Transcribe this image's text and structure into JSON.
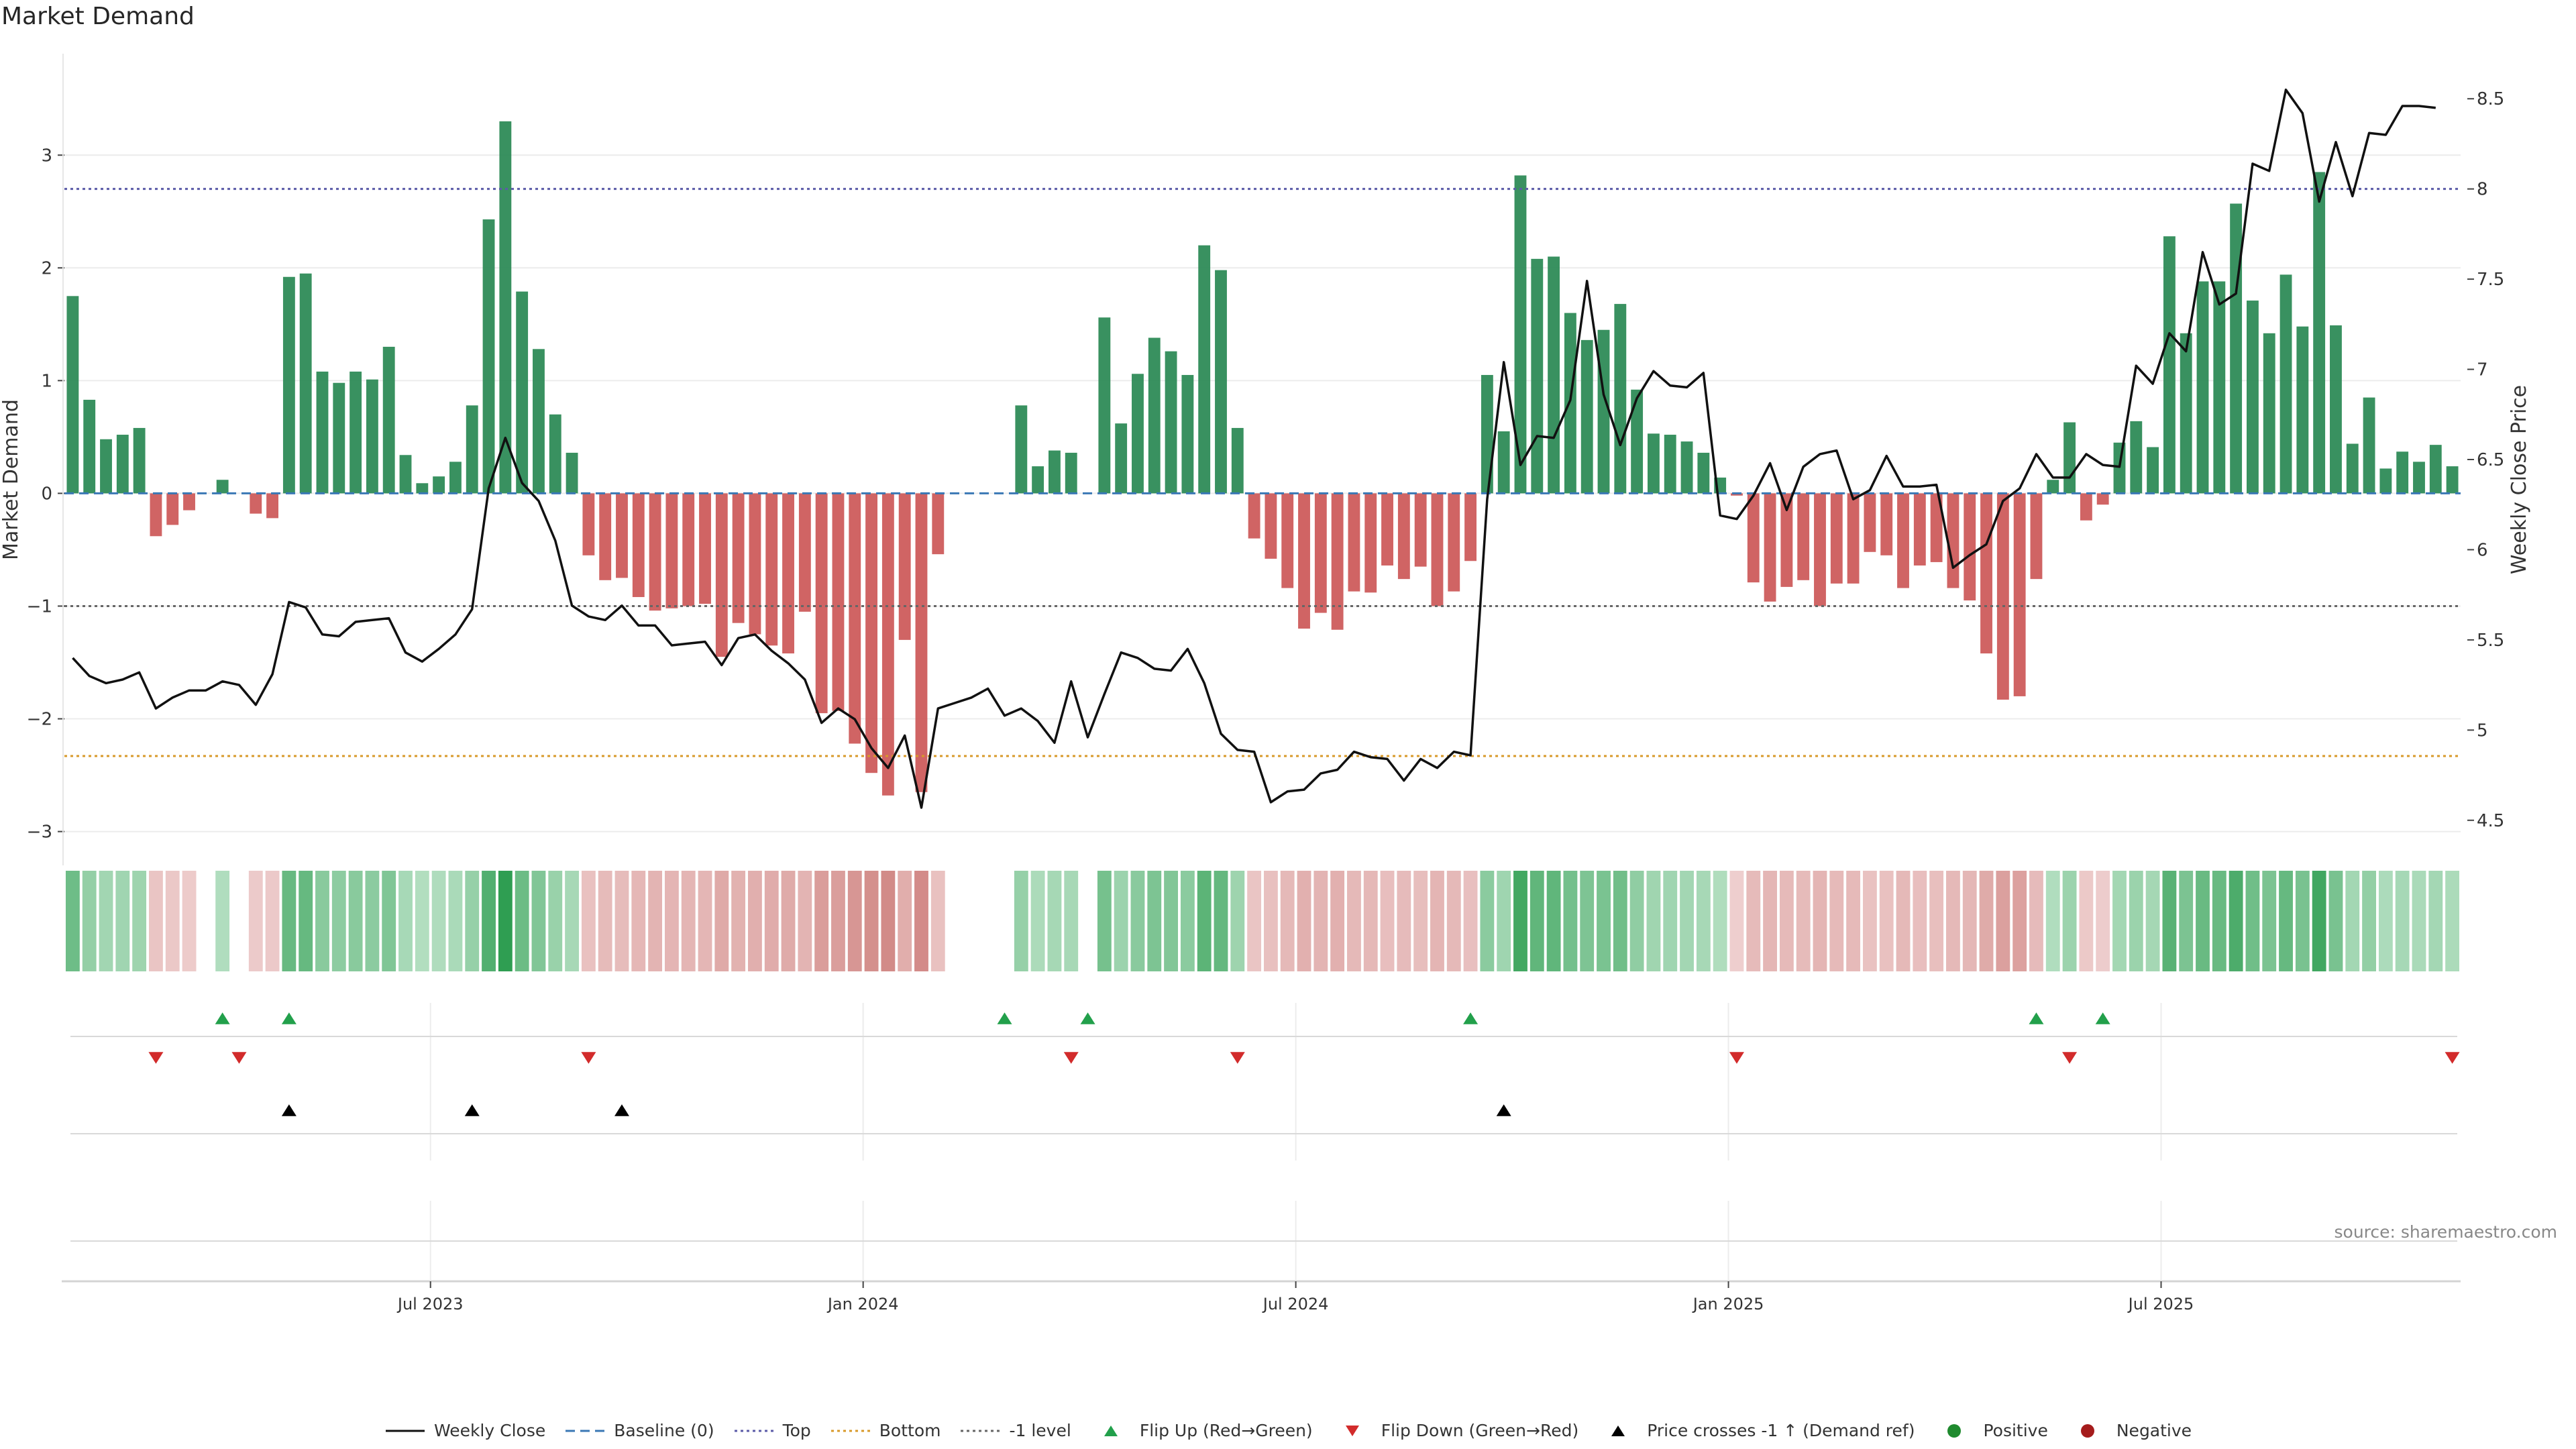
{
  "title": "Market Demand",
  "source": "source: sharemaestro.com",
  "colors": {
    "positive": "#2e8b57",
    "negative": "#cd5c5c",
    "price": "#111111",
    "top": "#5b5ba8",
    "bottom": "#d89a2a",
    "minus1": "#666666",
    "baseline": "#3a78b5",
    "flip_up": "#22a04b",
    "flip_down": "#d22b2b",
    "cross": "#000000",
    "legend_positive": "#1f8a2e",
    "legend_negative": "#a51c1c"
  },
  "chart_data": {
    "type": "bar",
    "title": "Market Demand",
    "ylabel_left": "Market Demand",
    "ylabel_right": "Weekly Close Price",
    "ylim_left": [
      -3.3,
      3.9
    ],
    "yticks_left": [
      3,
      2,
      1,
      0,
      -1,
      -2,
      -3
    ],
    "yticklabels_left": [
      "3",
      "2",
      "1",
      "0",
      "−1",
      "−2",
      "−3"
    ],
    "ylim_right": [
      4.25,
      8.75
    ],
    "yticks_right": [
      8.5,
      8,
      7.5,
      7,
      6.5,
      6,
      5.5,
      5,
      4.5
    ],
    "yticklabels_right": [
      "8.5",
      "8",
      "7.5",
      "7",
      "6.5",
      "6",
      "5.5",
      "5",
      "4.5"
    ],
    "reference_lines": {
      "top": 2.7,
      "bottom": -2.33,
      "minus_one_level": -1,
      "baseline": 0
    },
    "xticks": [
      {
        "index": 22,
        "label": "Jul 2023"
      },
      {
        "index": 48,
        "label": "Jan 2024"
      },
      {
        "index": 74,
        "label": "Jul 2024"
      },
      {
        "index": 100,
        "label": "Jan 2025"
      },
      {
        "index": 126,
        "label": "Jul 2025"
      }
    ],
    "series": [
      {
        "name": "Market Demand",
        "values": [
          1.75,
          0.83,
          0.48,
          0.52,
          0.58,
          -0.38,
          -0.28,
          -0.15,
          0,
          0.12,
          0,
          -0.18,
          -0.22,
          1.92,
          1.95,
          1.08,
          0.98,
          1.08,
          1.01,
          1.3,
          0.34,
          0.09,
          0.15,
          0.28,
          0.78,
          2.43,
          3.3,
          1.79,
          1.28,
          0.7,
          0.36,
          -0.55,
          -0.77,
          -0.75,
          -0.92,
          -1.04,
          -1.02,
          -1.0,
          -0.98,
          -1.45,
          -1.15,
          -1.25,
          -1.35,
          -1.42,
          -1.05,
          -1.95,
          -1.93,
          -2.22,
          -2.48,
          -2.68,
          -1.3,
          -2.65,
          -0.54,
          0,
          0,
          0,
          0,
          0.78,
          0.24,
          0.38,
          0.36,
          0,
          1.56,
          0.62,
          1.06,
          1.38,
          1.26,
          1.05,
          2.2,
          1.98,
          0.58,
          -0.4,
          -0.58,
          -0.84,
          -1.2,
          -1.06,
          -1.21,
          -0.87,
          -0.88,
          -0.64,
          -0.76,
          -0.65,
          -1.0,
          -0.87,
          -0.6,
          1.05,
          0.55,
          2.82,
          2.08,
          2.1,
          1.6,
          1.36,
          1.45,
          1.68,
          0.92,
          0.53,
          0.52,
          0.46,
          0.36,
          0.14,
          -0.02,
          -0.79,
          -0.96,
          -0.83,
          -0.77,
          -1.0,
          -0.8,
          -0.8,
          -0.52,
          -0.55,
          -0.84,
          -0.64,
          -0.61,
          -0.84,
          -0.95,
          -1.42,
          -1.83,
          -1.8,
          -0.76,
          0.12,
          0.63,
          -0.24,
          -0.1,
          0.45,
          0.64,
          0.41,
          2.28,
          1.42,
          1.88,
          1.88,
          2.57,
          1.71,
          1.42,
          1.94,
          1.48,
          2.85,
          1.49,
          0.44,
          0.85,
          0.22,
          0.37,
          0.28,
          0.43,
          0.24
        ]
      },
      {
        "name": "Weekly Close",
        "values": [
          5.4,
          5.3,
          5.26,
          5.28,
          5.32,
          5.12,
          5.18,
          5.22,
          5.22,
          5.27,
          5.25,
          5.14,
          5.31,
          5.71,
          5.68,
          5.53,
          5.52,
          5.6,
          5.61,
          5.62,
          5.43,
          5.38,
          5.45,
          5.53,
          5.67,
          6.34,
          6.62,
          6.37,
          6.27,
          6.05,
          5.69,
          5.63,
          5.61,
          5.69,
          5.58,
          5.58,
          5.47,
          5.48,
          5.49,
          5.36,
          5.51,
          5.53,
          5.44,
          5.37,
          5.28,
          5.04,
          5.12,
          5.06,
          4.9,
          4.79,
          4.97,
          4.57,
          5.12,
          5.15,
          5.18,
          5.23,
          5.08,
          5.12,
          5.05,
          4.93,
          5.27,
          4.96,
          5.2,
          5.43,
          5.4,
          5.34,
          5.33,
          5.45,
          5.26,
          4.98,
          4.89,
          4.88,
          4.6,
          4.66,
          4.67,
          4.76,
          4.78,
          4.88,
          4.85,
          4.84,
          4.72,
          4.84,
          4.79,
          4.88,
          4.86,
          6.28,
          7.04,
          6.47,
          6.63,
          6.62,
          6.83,
          7.49,
          6.86,
          6.58,
          6.84,
          6.99,
          6.91,
          6.9,
          6.98,
          6.19,
          6.17,
          6.3,
          6.48,
          6.22,
          6.46,
          6.53,
          6.55,
          6.28,
          6.33,
          6.52,
          6.35,
          6.35,
          6.36,
          5.9,
          5.97,
          6.03,
          6.27,
          6.34,
          6.53,
          6.4,
          6.4,
          6.53,
          6.47,
          6.46,
          7.02,
          6.92,
          7.2,
          7.1,
          7.65,
          7.36,
          7.42,
          8.14,
          8.1,
          8.55,
          8.42,
          7.93,
          8.26,
          7.96,
          8.31,
          8.3,
          8.46,
          8.46,
          8.45
        ]
      }
    ],
    "heat_strip": {
      "note": "color intensity encodes Market Demand per week"
    },
    "signals": {
      "flip_up_indices": [
        9,
        13,
        56,
        61,
        84,
        118,
        122
      ],
      "flip_down_indices": [
        5,
        10,
        31,
        60,
        70,
        100,
        120,
        143
      ],
      "price_cross_indices": [
        13,
        24,
        33,
        86
      ]
    },
    "legend": [
      {
        "key": "weekly_close",
        "label": "Weekly Close"
      },
      {
        "key": "baseline",
        "label": "Baseline (0)"
      },
      {
        "key": "top",
        "label": "Top"
      },
      {
        "key": "bottom",
        "label": "Bottom"
      },
      {
        "key": "minus1",
        "label": "-1 level"
      },
      {
        "key": "flip_up",
        "label": "Flip Up (Red→Green)"
      },
      {
        "key": "flip_down",
        "label": "Flip Down (Green→Red)"
      },
      {
        "key": "cross",
        "label": "Price crosses -1 ↑ (Demand ref)"
      },
      {
        "key": "positive",
        "label": "Positive"
      },
      {
        "key": "negative",
        "label": "Negative"
      }
    ]
  }
}
